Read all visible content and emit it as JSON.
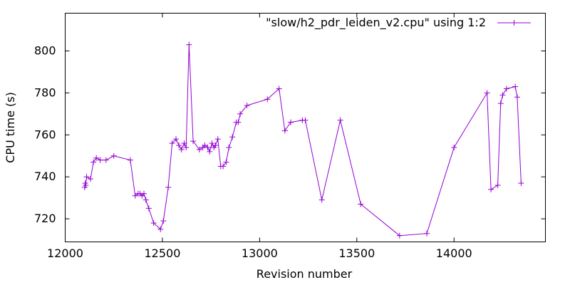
{
  "chart_data": {
    "type": "line",
    "title": "",
    "xlabel": "Revision number",
    "ylabel": "CPU time (s)",
    "xlim": [
      12000,
      14470
    ],
    "ylim": [
      709,
      818
    ],
    "xticks": [
      12000,
      12500,
      13000,
      13500,
      14000
    ],
    "yticks": [
      720,
      740,
      760,
      780,
      800
    ],
    "grid": false,
    "legend": "top-right",
    "series": [
      {
        "name": "\"slow/h2_pdr_leiden_v2.cpu\" using 1:2",
        "color": "#9400d3",
        "marker": "plus",
        "points": [
          [
            12100,
            735
          ],
          [
            12103,
            737
          ],
          [
            12106,
            736
          ],
          [
            12110,
            740
          ],
          [
            12130,
            739
          ],
          [
            12145,
            747
          ],
          [
            12160,
            749
          ],
          [
            12180,
            748
          ],
          [
            12210,
            748
          ],
          [
            12250,
            750
          ],
          [
            12335,
            748
          ],
          [
            12360,
            731
          ],
          [
            12375,
            732
          ],
          [
            12385,
            732
          ],
          [
            12395,
            731
          ],
          [
            12405,
            732
          ],
          [
            12415,
            729
          ],
          [
            12430,
            725
          ],
          [
            12455,
            718
          ],
          [
            12490,
            715
          ],
          [
            12505,
            719
          ],
          [
            12530,
            735
          ],
          [
            12550,
            756
          ],
          [
            12570,
            758
          ],
          [
            12585,
            755
          ],
          [
            12598,
            753
          ],
          [
            12612,
            756
          ],
          [
            12622,
            754
          ],
          [
            12637,
            803
          ],
          [
            12658,
            757
          ],
          [
            12690,
            753
          ],
          [
            12708,
            754
          ],
          [
            12718,
            755
          ],
          [
            12733,
            754
          ],
          [
            12743,
            752
          ],
          [
            12755,
            756
          ],
          [
            12765,
            754
          ],
          [
            12773,
            755
          ],
          [
            12785,
            758
          ],
          [
            12800,
            745
          ],
          [
            12812,
            745
          ],
          [
            12828,
            747
          ],
          [
            12842,
            754
          ],
          [
            12860,
            759
          ],
          [
            12880,
            766
          ],
          [
            12890,
            766
          ],
          [
            12900,
            770
          ],
          [
            12935,
            774
          ],
          [
            13040,
            777
          ],
          [
            13100,
            782
          ],
          [
            13130,
            762
          ],
          [
            13160,
            766
          ],
          [
            13220,
            767
          ],
          [
            13235,
            767
          ],
          [
            13320,
            729
          ],
          [
            13415,
            767
          ],
          [
            13520,
            727
          ],
          [
            13720,
            712
          ],
          [
            13860,
            713
          ],
          [
            14000,
            754
          ],
          [
            14170,
            780
          ],
          [
            14190,
            734
          ],
          [
            14225,
            736
          ],
          [
            14240,
            775
          ],
          [
            14250,
            779
          ],
          [
            14270,
            782
          ],
          [
            14315,
            783
          ],
          [
            14325,
            778
          ],
          [
            14345,
            737
          ]
        ]
      }
    ]
  }
}
